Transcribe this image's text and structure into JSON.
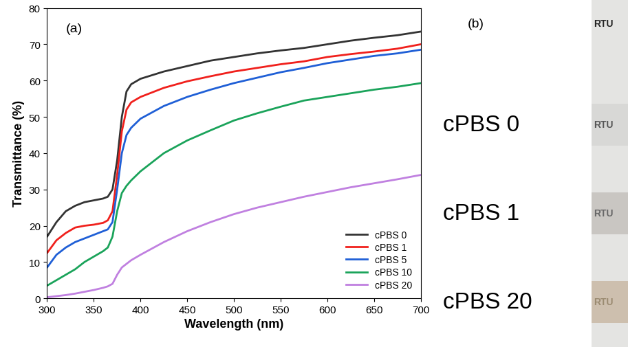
{
  "chart_data": {
    "type": "line",
    "annotations": [
      "(a)"
    ],
    "x_label": "Wavelength (nm)",
    "y_label": "Transmittance (%)",
    "x": [
      300,
      310,
      320,
      330,
      340,
      350,
      360,
      365,
      370,
      375,
      380,
      385,
      390,
      400,
      425,
      450,
      475,
      500,
      525,
      550,
      575,
      600,
      625,
      650,
      675,
      700
    ],
    "series": [
      {
        "name": "cPBS 0",
        "color": "#333333",
        "values": [
          17,
          21,
          24,
          25.5,
          26.5,
          27,
          27.5,
          28,
          30,
          38,
          50,
          57,
          59,
          60.5,
          62.5,
          64,
          65.5,
          66.5,
          67.5,
          68.3,
          69,
          70,
          71,
          71.8,
          72.5,
          73.5
        ]
      },
      {
        "name": "cPBS 1",
        "color": "#f0201c",
        "values": [
          12.5,
          16,
          18,
          19.5,
          20,
          20.3,
          20.8,
          21.5,
          24,
          34,
          46,
          52,
          54,
          55.5,
          58,
          59.8,
          61.2,
          62.5,
          63.5,
          64.5,
          65.3,
          66.5,
          67.3,
          68,
          68.8,
          70
        ]
      },
      {
        "name": "cPBS 5",
        "color": "#1f5fd6",
        "values": [
          8.5,
          12,
          14,
          15.5,
          16.5,
          17.5,
          18.5,
          19,
          21,
          30,
          40,
          45,
          47,
          49.5,
          53,
          55.5,
          57.5,
          59.3,
          60.8,
          62.3,
          63.5,
          64.8,
          65.8,
          66.8,
          67.5,
          68.5
        ]
      },
      {
        "name": "cPBS 10",
        "color": "#1aa35a",
        "values": [
          3.5,
          5,
          6.5,
          8,
          10,
          11.5,
          13,
          14,
          17,
          24,
          29,
          31,
          32.5,
          35,
          40,
          43.5,
          46.3,
          49,
          51,
          52.8,
          54.5,
          55.5,
          56.5,
          57.5,
          58.3,
          59.3
        ]
      },
      {
        "name": "cPBS 20",
        "color": "#c080e0",
        "values": [
          0.3,
          0.6,
          0.9,
          1.3,
          1.8,
          2.3,
          2.9,
          3.3,
          4,
          6.5,
          8.5,
          9.5,
          10.5,
          12,
          15.5,
          18.5,
          21,
          23.2,
          25,
          26.5,
          28,
          29.3,
          30.6,
          31.7,
          32.8,
          34
        ]
      }
    ],
    "xlim": [
      300,
      700
    ],
    "xticks": [
      300,
      350,
      400,
      450,
      500,
      550,
      600,
      650,
      700
    ],
    "ylim": [
      0,
      80
    ],
    "yticks": [
      0,
      10,
      20,
      30,
      40,
      50,
      60,
      70,
      80
    ],
    "grid": false,
    "legend": "lower right"
  },
  "panel_b": {
    "label": "(b)",
    "samples": [
      "cPBS 0",
      "cPBS 1",
      "cPBS 20"
    ],
    "photo_text": "RTU"
  }
}
